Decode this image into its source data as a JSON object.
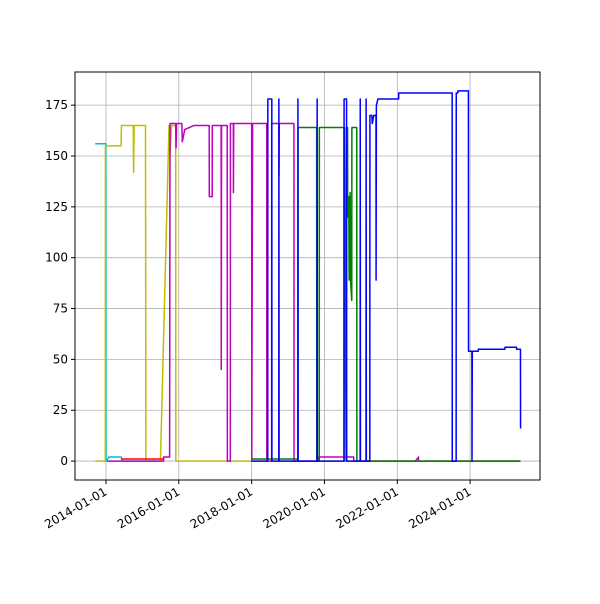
{
  "chart_data": {
    "type": "line",
    "xlim": [
      "2013-02-24",
      "2025-12-02"
    ],
    "xticks": [
      "2014-01-01",
      "2016-01-01",
      "2018-01-01",
      "2020-01-01",
      "2022-01-01",
      "2024-01-01"
    ],
    "ylim": [
      -9.3,
      191.3
    ],
    "yticks": [
      0,
      25,
      50,
      75,
      100,
      125,
      150,
      175
    ],
    "grid": true,
    "series": [
      {
        "color": "#00bfbf",
        "x": [
          "2013-09-15",
          "2013-12-31",
          "2014-01-01",
          "2014-02-01",
          "2014-06-01",
          "2014-06-15",
          "2015-06-01"
        ],
        "values": [
          156,
          156,
          0,
          2,
          2,
          0,
          0
        ]
      },
      {
        "color": "#bfbf00",
        "x": [
          "2013-09-15",
          "2013-12-25",
          "2013-12-26",
          "2014-06-01",
          "2014-06-05",
          "2014-10-01",
          "2014-10-05",
          "2014-10-10",
          "2015-02-01",
          "2015-02-05",
          "2015-06-01",
          "2015-06-05",
          "2015-07-01",
          "2015-09-25",
          "2015-10-01",
          "2015-10-05",
          "2015-10-20",
          "2015-11-01",
          "2015-12-01",
          "2015-12-02",
          "2025-05-20"
        ],
        "values": [
          0,
          0,
          155,
          155,
          165,
          165,
          142,
          165,
          165,
          0,
          0,
          0,
          0,
          165,
          165,
          150,
          165,
          165,
          165,
          0,
          0
        ]
      },
      {
        "color": "#ff0000",
        "x": [
          "2014-06-01",
          "2015-08-01",
          "2015-08-02"
        ],
        "values": [
          1,
          1,
          0
        ]
      },
      {
        "color": "#bf00bf",
        "x": [
          "2014-01-10",
          "2015-08-01",
          "2015-08-02",
          "2015-10-01",
          "2015-10-05",
          "2015-12-01",
          "2015-12-05",
          "2015-12-10",
          "2016-02-01",
          "2016-02-05",
          "2016-03-01",
          "2016-06-01",
          "2016-11-01",
          "2016-11-02",
          "2016-12-01",
          "2016-12-02",
          "2017-03-01",
          "2017-03-02",
          "2017-03-05",
          "2017-05-01",
          "2017-05-02",
          "2017-06-01",
          "2017-06-02",
          "2017-07-01",
          "2017-07-02",
          "2017-07-05",
          "2018-01-01",
          "2018-01-02",
          "2018-01-10",
          "2018-06-01",
          "2018-06-02",
          "2018-07-20",
          "2018-07-21",
          "2018-10-01",
          "2018-10-02",
          "2018-10-05",
          "2019-03-01",
          "2019-03-02",
          "2019-10-25",
          "2019-10-26",
          "2020-10-20",
          "2020-10-21",
          "2022-07-01",
          "2022-08-01",
          "2022-08-02",
          "2025-05-20"
        ],
        "values": [
          0,
          0,
          2,
          2,
          166,
          166,
          154,
          166,
          166,
          157,
          163,
          165,
          165,
          130,
          130,
          165,
          165,
          45,
          165,
          165,
          0,
          0,
          166,
          166,
          132,
          166,
          166,
          0,
          166,
          166,
          0,
          0,
          166,
          166,
          140,
          166,
          166,
          0,
          0,
          2,
          2,
          0,
          0,
          2,
          0,
          0
        ]
      },
      {
        "color": "#008000",
        "x": [
          "2018-01-01",
          "2019-04-10",
          "2019-04-11",
          "2019-10-15",
          "2019-10-16",
          "2019-11-10",
          "2019-11-11",
          "2020-07-15",
          "2020-07-16",
          "2020-07-20",
          "2020-08-05",
          "2020-08-10",
          "2020-08-20",
          "2020-08-21",
          "2020-09-01",
          "2020-09-05",
          "2020-09-15",
          "2020-09-20",
          "2020-10-01",
          "2020-10-02",
          "2020-11-20",
          "2020-11-21",
          "2025-05-20"
        ],
        "values": [
          1,
          1,
          164,
          164,
          0,
          0,
          164,
          164,
          0,
          164,
          0,
          164,
          164,
          120,
          130,
          89,
          132,
          88,
          79,
          164,
          164,
          0,
          0
        ]
      },
      {
        "color": "#0000ff",
        "x": [
          "2018-01-01",
          "2018-06-11",
          "2018-06-12",
          "2018-07-22",
          "2018-07-23",
          "2018-09-30",
          "2018-10-01",
          "2018-10-03",
          "2019-04-09",
          "2019-04-10",
          "2019-04-12",
          "2019-10-19",
          "2019-10-20",
          "2019-10-22",
          "2020-07-15",
          "2020-07-16",
          "2020-08-10",
          "2020-08-11",
          "2020-12-24",
          "2020-12-25",
          "2020-12-27",
          "2021-02-21",
          "2021-02-22",
          "2021-02-24",
          "2021-03-31",
          "2021-04-01",
          "2021-04-20",
          "2021-04-25",
          "2021-05-10",
          "2021-06-01",
          "2021-06-02",
          "2021-06-05",
          "2021-06-20",
          "2022-01-14",
          "2022-01-15",
          "2023-07-05",
          "2023-07-06",
          "2023-08-14",
          "2023-08-15",
          "2023-08-31",
          "2023-09-01",
          "2023-12-15",
          "2023-12-16",
          "2024-01-19",
          "2024-01-20",
          "2024-01-23",
          "2024-03-22",
          "2024-03-23",
          "2024-12-15",
          "2024-12-16",
          "2025-04-10",
          "2025-04-11",
          "2025-05-20",
          "2025-05-21"
        ],
        "values": [
          0,
          0,
          178,
          178,
          0,
          0,
          178,
          0,
          0,
          178,
          0,
          0,
          178,
          0,
          0,
          178,
          178,
          0,
          0,
          178,
          0,
          0,
          178,
          0,
          0,
          170,
          170,
          166,
          170,
          170,
          89,
          175,
          178,
          178,
          181,
          181,
          0,
          0,
          181,
          181,
          182,
          182,
          54,
          54,
          0,
          54,
          54,
          55,
          55,
          56,
          56,
          55,
          55,
          16
        ]
      }
    ]
  }
}
